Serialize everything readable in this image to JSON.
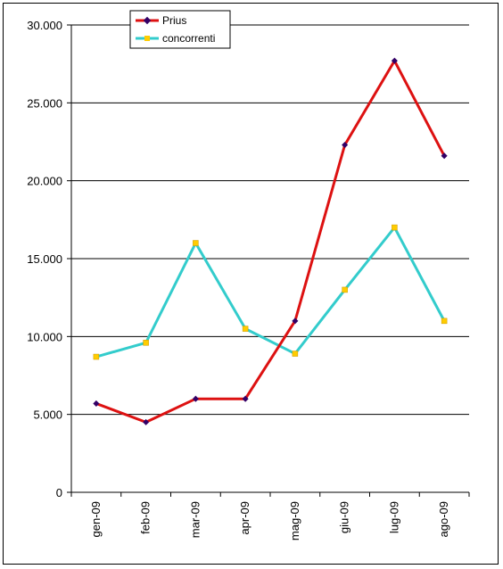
{
  "chart_data": {
    "type": "line",
    "categories": [
      "gen-09",
      "feb-09",
      "mar-09",
      "apr-09",
      "mag-09",
      "giu-09",
      "lug-09",
      "ago-09"
    ],
    "series": [
      {
        "name": "Prius",
        "values": [
          5700,
          4500,
          6000,
          6000,
          11000,
          22300,
          27700,
          21600
        ],
        "color": "#dd1111",
        "marker_color": "#330066",
        "marker": "diamond"
      },
      {
        "name": "concorrenti",
        "values": [
          8700,
          9600,
          16000,
          10500,
          8900,
          13000,
          17000,
          11000
        ],
        "color": "#33cccc",
        "marker_color": "#ffcc00",
        "marker": "square"
      }
    ],
    "y_ticks": [
      "0",
      "5.000",
      "10.000",
      "15.000",
      "20.000",
      "25.000",
      "30.000"
    ],
    "ylim": [
      0,
      30000
    ],
    "y_step": 5000,
    "grid": true,
    "legend_position": "top-left",
    "title": "",
    "xlabel": "",
    "ylabel": ""
  }
}
